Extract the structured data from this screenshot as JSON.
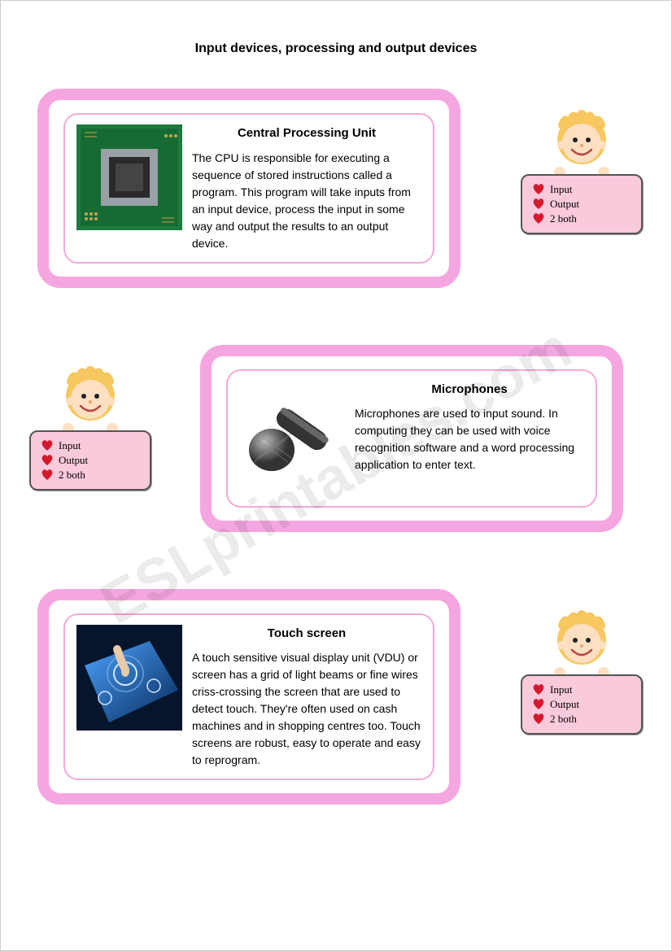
{
  "page": {
    "title": "Input devices, processing and output devices",
    "watermark": "ESLprintables.com"
  },
  "colors": {
    "card_border": "#f5a6e0",
    "card_inner_border": "#f7a8d8",
    "sign_bg": "#f9c9dc",
    "heart": "#d4192e",
    "kid_hair": "#f6c85f",
    "kid_skin": "#fde0c2",
    "cpu_board": "#1e7a3e",
    "cpu_chip": "#2a2a2a",
    "touch_screen": "#0b4fa8",
    "touch_glow": "#6fb6ff"
  },
  "badge": {
    "options": [
      "Input",
      "Output",
      "2 both"
    ]
  },
  "sections": [
    {
      "title": "Central Processing Unit",
      "body": "The CPU is responsible for executing a sequence of stored instructions called a program. This program will take inputs from an input device, process the input in some way and output the results to an output device.",
      "image": "cpu",
      "card_pos": "left",
      "img_side": "right",
      "badge_side": "right"
    },
    {
      "title": "Microphones",
      "body": "Microphones are used to input sound. In computing they can be used with voice recognition software and a word processing application to enter text.",
      "image": "microphone",
      "card_pos": "right",
      "img_side": "left",
      "badge_side": "left"
    },
    {
      "title": "Touch screen",
      "body": "A touch sensitive visual display unit (VDU) or screen has a grid of light beams or fine wires criss-crossing the screen that are used to detect touch. They're often used on cash machines and in shopping centres too. Touch screens are robust, easy to operate and easy to reprogram.",
      "image": "touchscreen",
      "card_pos": "left",
      "img_side": "left",
      "badge_side": "right"
    }
  ]
}
